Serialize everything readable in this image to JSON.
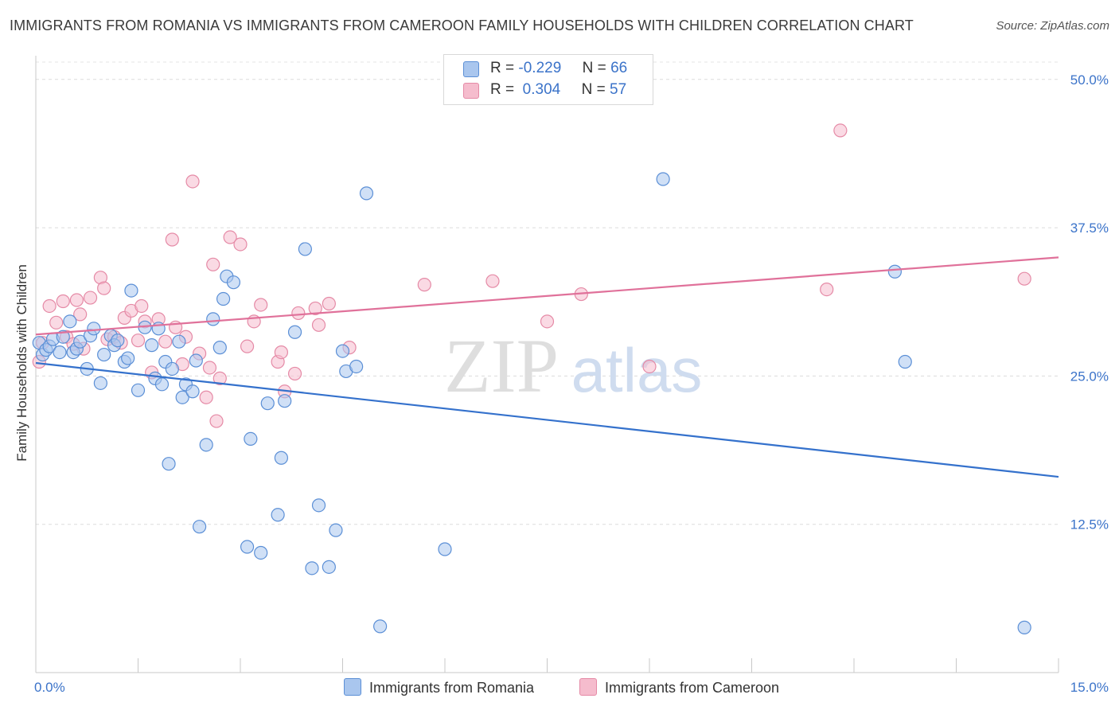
{
  "title": "IMMIGRANTS FROM ROMANIA VS IMMIGRANTS FROM CAMEROON FAMILY HOUSEHOLDS WITH CHILDREN CORRELATION CHART",
  "source": "Source: ZipAtlas.com",
  "watermark": {
    "zip": "ZIP",
    "atlas": "atlas"
  },
  "legend_top": [
    {
      "r_label": "R =",
      "r_value": "-0.229",
      "n_label": "N =",
      "n_value": "66"
    },
    {
      "r_label": "R =",
      "r_value": "0.304",
      "n_label": "N =",
      "n_value": "57"
    }
  ],
  "chart_data": {
    "type": "scatter",
    "ylabel": "Family Households with Children",
    "xlim": [
      0,
      15
    ],
    "ylim": [
      0,
      52
    ],
    "x_tick_labels": [
      "0.0%",
      "15.0%"
    ],
    "y_ticks": [
      12.5,
      25.0,
      37.5,
      50.0
    ],
    "y_tick_labels": [
      "12.5%",
      "25.0%",
      "37.5%",
      "50.0%"
    ],
    "grid": true,
    "colors": {
      "romania_fill": "#a9c6ee",
      "romania_stroke": "#5b8fd6",
      "romania_line": "#3471cc",
      "cameroon_fill": "#f5bccd",
      "cameroon_stroke": "#e58aa6",
      "cameroon_line": "#e0719a",
      "tick_label": "#3b73c9"
    },
    "series": [
      {
        "name": "Immigrants from Romania",
        "trend": [
          [
            0,
            26.1
          ],
          [
            15,
            16.5
          ]
        ],
        "points": [
          [
            0.05,
            27.8
          ],
          [
            0.1,
            26.8
          ],
          [
            0.15,
            27.2
          ],
          [
            0.2,
            27.5
          ],
          [
            0.25,
            28.1
          ],
          [
            0.35,
            27.0
          ],
          [
            0.4,
            28.3
          ],
          [
            0.5,
            29.6
          ],
          [
            0.55,
            27.0
          ],
          [
            0.6,
            27.3
          ],
          [
            0.65,
            27.9
          ],
          [
            0.75,
            25.6
          ],
          [
            0.8,
            28.4
          ],
          [
            0.85,
            29.0
          ],
          [
            0.95,
            24.4
          ],
          [
            1.0,
            26.8
          ],
          [
            1.1,
            28.4
          ],
          [
            1.15,
            27.6
          ],
          [
            1.2,
            28.0
          ],
          [
            1.3,
            26.2
          ],
          [
            1.35,
            26.5
          ],
          [
            1.4,
            32.2
          ],
          [
            1.5,
            23.8
          ],
          [
            1.6,
            29.1
          ],
          [
            1.7,
            27.6
          ],
          [
            1.75,
            24.8
          ],
          [
            1.8,
            29.0
          ],
          [
            1.85,
            24.3
          ],
          [
            1.9,
            26.2
          ],
          [
            1.95,
            17.6
          ],
          [
            2.0,
            25.6
          ],
          [
            2.1,
            27.9
          ],
          [
            2.15,
            23.2
          ],
          [
            2.2,
            24.3
          ],
          [
            2.3,
            23.7
          ],
          [
            2.35,
            26.3
          ],
          [
            2.4,
            12.3
          ],
          [
            2.5,
            19.2
          ],
          [
            2.6,
            29.8
          ],
          [
            2.7,
            27.4
          ],
          [
            2.75,
            31.5
          ],
          [
            2.8,
            33.4
          ],
          [
            2.9,
            32.9
          ],
          [
            3.1,
            10.6
          ],
          [
            3.15,
            19.7
          ],
          [
            3.3,
            10.1
          ],
          [
            3.4,
            22.7
          ],
          [
            3.55,
            13.3
          ],
          [
            3.6,
            18.1
          ],
          [
            3.65,
            22.9
          ],
          [
            3.8,
            28.7
          ],
          [
            3.95,
            35.7
          ],
          [
            4.05,
            8.8
          ],
          [
            4.15,
            14.1
          ],
          [
            4.3,
            8.9
          ],
          [
            4.4,
            12.0
          ],
          [
            4.5,
            27.1
          ],
          [
            4.55,
            25.4
          ],
          [
            4.7,
            25.8
          ],
          [
            4.85,
            40.4
          ],
          [
            5.05,
            3.9
          ],
          [
            6.0,
            10.4
          ],
          [
            9.2,
            41.6
          ],
          [
            12.6,
            33.8
          ],
          [
            12.75,
            26.2
          ],
          [
            14.5,
            3.8
          ]
        ]
      },
      {
        "name": "Immigrants from Cameroon",
        "trend": [
          [
            0,
            28.5
          ],
          [
            15,
            35.0
          ]
        ],
        "points": [
          [
            0.05,
            26.2
          ],
          [
            0.1,
            27.8
          ],
          [
            0.2,
            30.9
          ],
          [
            0.3,
            29.5
          ],
          [
            0.4,
            31.3
          ],
          [
            0.45,
            28.3
          ],
          [
            0.55,
            27.7
          ],
          [
            0.6,
            31.4
          ],
          [
            0.65,
            30.2
          ],
          [
            0.7,
            27.3
          ],
          [
            0.8,
            31.6
          ],
          [
            0.95,
            33.3
          ],
          [
            1.0,
            32.4
          ],
          [
            1.05,
            28.1
          ],
          [
            1.15,
            28.3
          ],
          [
            1.25,
            27.8
          ],
          [
            1.3,
            29.9
          ],
          [
            1.4,
            30.5
          ],
          [
            1.5,
            28.0
          ],
          [
            1.55,
            30.9
          ],
          [
            1.6,
            29.6
          ],
          [
            1.7,
            25.3
          ],
          [
            1.8,
            29.8
          ],
          [
            1.9,
            27.9
          ],
          [
            2.0,
            36.5
          ],
          [
            2.05,
            29.1
          ],
          [
            2.15,
            26.0
          ],
          [
            2.2,
            28.3
          ],
          [
            2.3,
            41.4
          ],
          [
            2.4,
            26.9
          ],
          [
            2.5,
            23.2
          ],
          [
            2.55,
            25.7
          ],
          [
            2.6,
            34.4
          ],
          [
            2.65,
            21.2
          ],
          [
            2.7,
            24.8
          ],
          [
            2.85,
            36.7
          ],
          [
            3.0,
            36.1
          ],
          [
            3.1,
            27.5
          ],
          [
            3.2,
            29.6
          ],
          [
            3.3,
            31.0
          ],
          [
            3.55,
            26.2
          ],
          [
            3.6,
            27.0
          ],
          [
            3.65,
            23.7
          ],
          [
            3.8,
            25.2
          ],
          [
            3.85,
            30.3
          ],
          [
            4.1,
            30.7
          ],
          [
            4.15,
            29.3
          ],
          [
            4.3,
            31.1
          ],
          [
            4.6,
            27.4
          ],
          [
            5.7,
            32.7
          ],
          [
            6.7,
            33.0
          ],
          [
            7.5,
            29.6
          ],
          [
            8.0,
            31.9
          ],
          [
            9.0,
            25.8
          ],
          [
            11.6,
            32.3
          ],
          [
            11.8,
            45.7
          ],
          [
            14.5,
            33.2
          ]
        ]
      }
    ]
  }
}
